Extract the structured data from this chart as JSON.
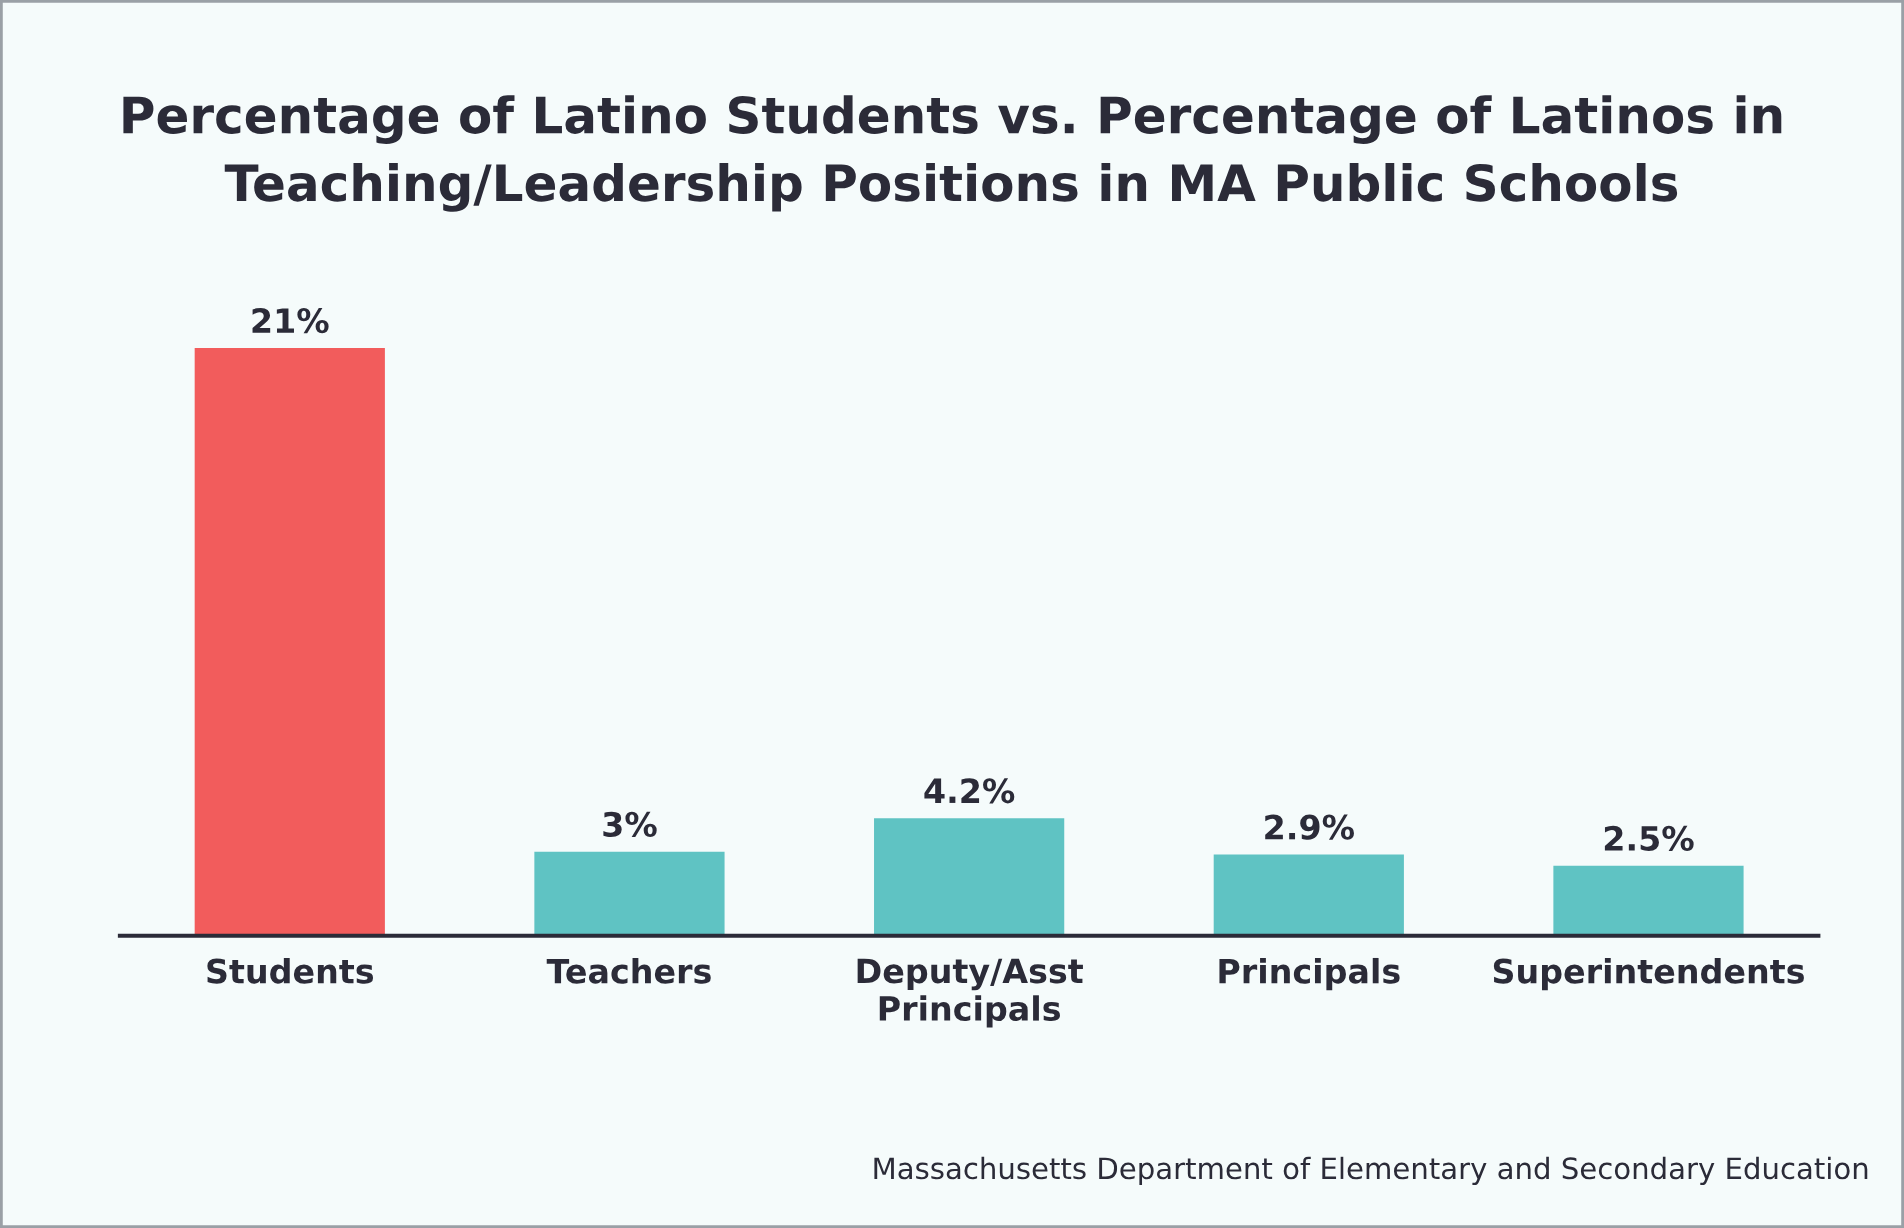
{
  "chart_data": {
    "type": "bar",
    "title": "Percentage of Latino Students vs. Percentage of Latinos in\nTeaching/Leadership Positions in MA Public Schools",
    "categories": [
      "Students",
      "Teachers",
      "Deputy/Asst\nPrincipals",
      "Principals",
      "Superintendents"
    ],
    "values": [
      21,
      3,
      4.2,
      2.9,
      2.5
    ],
    "colors": [
      "#f25c5c",
      "#5fc3c3",
      "#5fc3c3",
      "#5fc3c3",
      "#5fc3c3"
    ],
    "value_labels": [
      "21%",
      "3%",
      "4.2%",
      "2.9%",
      "2.5%"
    ],
    "annotations": [
      "Massachusetts Department of Elementary and Secondary Education"
    ],
    "grid": false,
    "legend": false
  }
}
